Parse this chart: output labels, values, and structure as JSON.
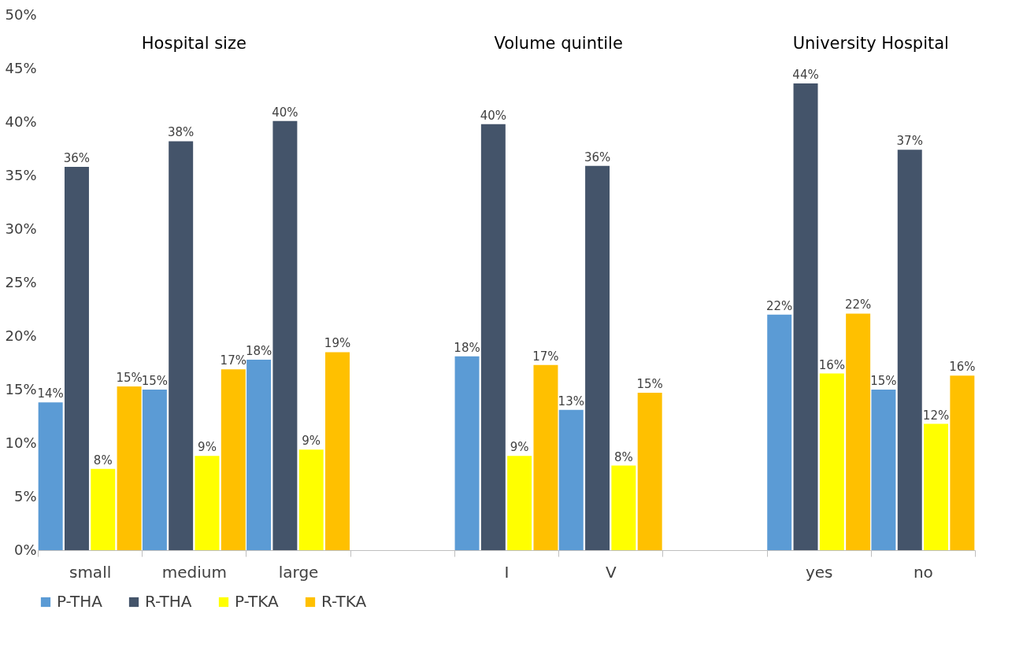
{
  "chart_data": {
    "type": "bar",
    "annotations": [
      "Hospital size",
      "Volume quintile",
      "University Hospital"
    ],
    "categories": [
      "small",
      "medium",
      "large",
      null,
      "I",
      "V",
      null,
      "yes",
      "no"
    ],
    "series": [
      {
        "name": "P-THA",
        "color": "#5b9bd5",
        "values": [
          13.8,
          15.0,
          17.8,
          null,
          18.1,
          13.1,
          null,
          22.0,
          15.0
        ],
        "value_labels": [
          "14%",
          "15%",
          "18%",
          null,
          "18%",
          "13%",
          null,
          "22%",
          "15%"
        ]
      },
      {
        "name": "R-THA",
        "color": "#44546a",
        "values": [
          35.8,
          38.2,
          40.1,
          null,
          39.8,
          35.9,
          null,
          43.6,
          37.4
        ],
        "value_labels": [
          "36%",
          "38%",
          "40%",
          null,
          "40%",
          "36%",
          null,
          "44%",
          "37%"
        ]
      },
      {
        "name": "P-TKA",
        "color": "#ffff00",
        "values": [
          7.6,
          8.8,
          9.4,
          null,
          8.8,
          7.9,
          null,
          16.5,
          11.8
        ],
        "value_labels": [
          "8%",
          "9%",
          "9%",
          null,
          "9%",
          "8%",
          null,
          "16%",
          "12%"
        ]
      },
      {
        "name": "R-TKA",
        "color": "#ffc000",
        "values": [
          15.3,
          16.9,
          18.5,
          null,
          17.3,
          14.7,
          null,
          22.1,
          16.3
        ],
        "value_labels": [
          "15%",
          "17%",
          "19%",
          null,
          "17%",
          "15%",
          null,
          "22%",
          "16%"
        ]
      }
    ],
    "ylim": [
      0,
      50
    ],
    "yticks": [
      {
        "value": 0,
        "label": "0%"
      },
      {
        "value": 5,
        "label": "5%"
      },
      {
        "value": 10,
        "label": "10%"
      },
      {
        "value": 15,
        "label": "15%"
      },
      {
        "value": 20,
        "label": "20%"
      },
      {
        "value": 25,
        "label": "25%"
      },
      {
        "value": 30,
        "label": "30%"
      },
      {
        "value": 35,
        "label": "35%"
      },
      {
        "value": 40,
        "label": "40%"
      },
      {
        "value": 45,
        "label": "45%"
      },
      {
        "value": 50,
        "label": "50%"
      }
    ],
    "grid": false,
    "legend": "bottom"
  }
}
